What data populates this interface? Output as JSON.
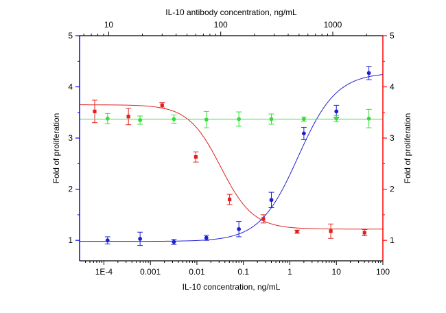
{
  "chart_data": {
    "type": "scatter",
    "x_label": "IL-10 concentration, ng/mL",
    "x2_label": "IL-10 antibody concentration, ng/mL",
    "y_label": "Fold of proliferation",
    "y2_label": "Fold of proliferation",
    "x_scale": "log",
    "x_range": [
      3e-05,
      100
    ],
    "x_ticks": [
      0.0001,
      0.001,
      0.01,
      0.1,
      1,
      10,
      100
    ],
    "x_tick_labels": [
      "1E-4",
      "0.001",
      "0.01",
      "0.1",
      "1",
      "10",
      "100"
    ],
    "x2_scale": "log",
    "x2_range": [
      5.5,
      2800
    ],
    "x2_ticks": [
      10,
      100,
      1000
    ],
    "x2_tick_labels": [
      "10",
      "100",
      "1000"
    ],
    "y_range": [
      0.6,
      5
    ],
    "y_ticks": [
      1,
      2,
      3,
      4,
      5
    ],
    "y_tick_labels": [
      "1",
      "2",
      "3",
      "4",
      "5"
    ],
    "colors": {
      "left_axis": "#0000ff",
      "right_axis": "#ff0000"
    },
    "series": [
      {
        "color": "#1f1fd0",
        "axis": "bottom",
        "x": [
          0.00012,
          0.0006,
          0.0032,
          0.016,
          0.08,
          0.4,
          2,
          10,
          50
        ],
        "y": [
          1.0,
          1.03,
          0.97,
          1.05,
          1.22,
          1.79,
          3.09,
          3.52,
          4.27
        ],
        "err": [
          0.07,
          0.13,
          0.05,
          0.05,
          0.15,
          0.15,
          0.12,
          0.12,
          0.13
        ],
        "fit": {
          "bottom": 0.98,
          "top": 4.28,
          "ec50": 1.5,
          "hill": 1.05
        }
      },
      {
        "color": "#e02020",
        "axis": "top",
        "x": [
          7.5,
          15,
          30,
          60,
          120,
          240,
          480,
          960,
          1920
        ],
        "y": [
          3.52,
          3.42,
          3.64,
          2.63,
          1.8,
          1.42,
          1.17,
          1.18,
          1.15
        ],
        "err": [
          0.22,
          0.16,
          0.05,
          0.1,
          0.1,
          0.08,
          0.03,
          0.14,
          0.06
        ],
        "fit": {
          "bottom": 1.22,
          "top": 3.65,
          "ec50": 100,
          "hill": -3.0
        }
      },
      {
        "color": "#33dd33",
        "axis": "bottom",
        "x": [
          0.00012,
          0.0006,
          0.0032,
          0.016,
          0.08,
          0.4,
          2,
          10,
          50
        ],
        "y": [
          3.38,
          3.35,
          3.37,
          3.36,
          3.37,
          3.37,
          3.37,
          3.38,
          3.38
        ],
        "err": [
          0.1,
          0.08,
          0.08,
          0.16,
          0.14,
          0.1,
          0.04,
          0.06,
          0.18
        ],
        "fit": {
          "constant": 3.37
        }
      }
    ]
  }
}
